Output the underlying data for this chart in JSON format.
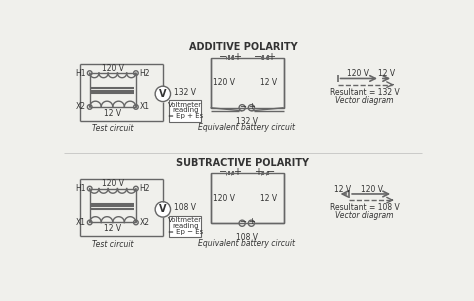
{
  "bg_color": "#f0f0ec",
  "line_color": "#666666",
  "text_color": "#333333",
  "title_additive": "ADDITIVE POLARITY",
  "title_subtractive": "SUBTRACTIVE POLARITY",
  "label_test_circuit": "Test circuit",
  "label_equiv_battery": "Equivalent battery circuit",
  "label_vector": "Vector diagram",
  "additive_voltmeter": "132 V",
  "subtractive_voltmeter": "108 V",
  "additive_resultant": "Resultant = 132 V",
  "subtractive_resultant": "Resultant = 108 V",
  "voltmeter_reading_add": "= Ep + Es",
  "voltmeter_reading_sub": "= Ep − Es",
  "eq132": "132 V",
  "eq108": "108 V"
}
